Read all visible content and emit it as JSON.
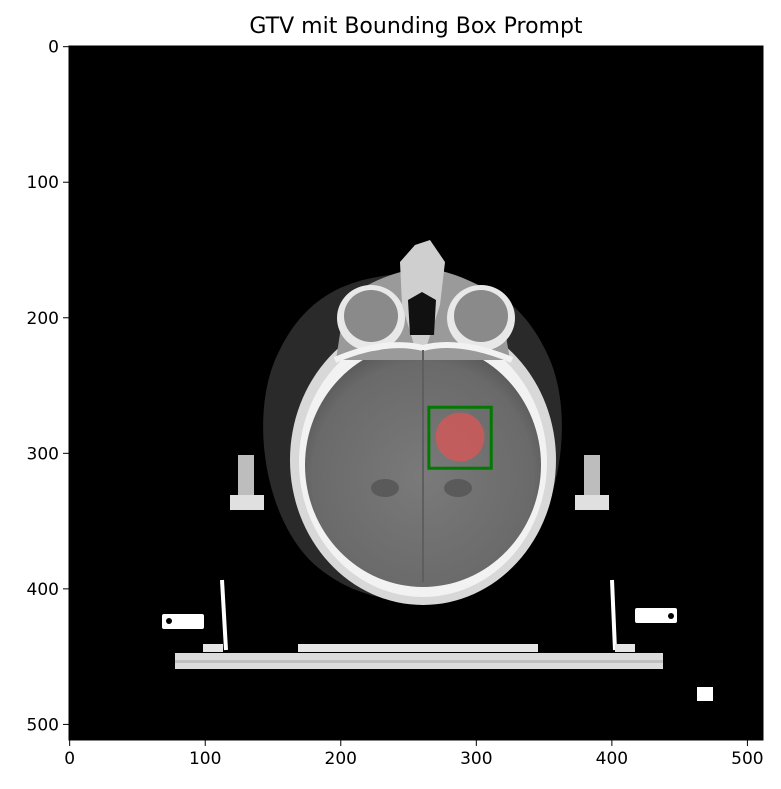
{
  "figure": {
    "title": "GTV mit Bounding Box Prompt",
    "image_size": [
      512,
      512
    ],
    "x_ticks": [
      0,
      100,
      200,
      300,
      400,
      500
    ],
    "y_ticks": [
      0,
      100,
      200,
      300,
      400,
      500
    ],
    "bounding_box": {
      "x0": 265,
      "y0": 266,
      "x1": 311,
      "y1": 311,
      "color": "#007a00"
    },
    "gtv_mask": {
      "cx": 288,
      "cy": 288,
      "r": 18,
      "color": "#e05555"
    },
    "background_color": "#000000"
  }
}
